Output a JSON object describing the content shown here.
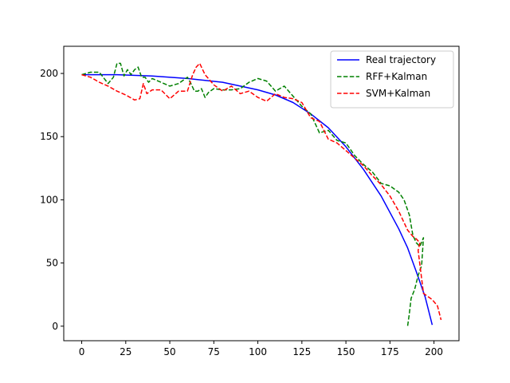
{
  "chart_data": {
    "type": "line",
    "title": "",
    "xlabel": "",
    "ylabel": "",
    "xlim": [
      -10.2,
      214.2
    ],
    "ylim": [
      -11.5,
      221.5
    ],
    "xticks": [
      0,
      25,
      50,
      75,
      100,
      125,
      150,
      175,
      200
    ],
    "yticks": [
      0,
      50,
      100,
      150,
      200
    ],
    "grid": false,
    "legend_position": "upper right",
    "series": [
      {
        "name": "Real trajectory",
        "color": "#0000ff",
        "style": "solid",
        "x": [
          0,
          20,
          40,
          60,
          80,
          100,
          110,
          120,
          130,
          140,
          150,
          160,
          170,
          180,
          185,
          190,
          195,
          199
        ],
        "y": [
          199,
          199,
          198,
          196,
          193,
          187,
          183,
          177,
          168,
          157,
          142,
          124,
          103,
          77,
          62,
          43,
          23,
          1
        ]
      },
      {
        "name": "RFF+Kalman",
        "color": "#008000",
        "style": "dashed",
        "x": [
          0,
          5,
          10,
          15,
          18,
          20,
          22,
          24,
          26,
          28,
          30,
          32,
          34,
          36,
          38,
          40,
          45,
          50,
          55,
          60,
          62,
          64,
          66,
          68,
          70,
          72,
          75,
          80,
          85,
          90,
          95,
          100,
          105,
          110,
          115,
          120,
          125,
          130,
          135,
          140,
          145,
          150,
          155,
          160,
          165,
          170,
          175,
          180,
          183,
          186,
          188,
          190,
          192,
          194,
          193,
          191,
          189,
          187,
          186,
          185
        ],
        "y": [
          199,
          201,
          201,
          192,
          197,
          208,
          208,
          198,
          203,
          199,
          203,
          205,
          197,
          197,
          193,
          196,
          193,
          190,
          192,
          197,
          192,
          186,
          186,
          188,
          181,
          185,
          188,
          187,
          187,
          188,
          193,
          196,
          194,
          186,
          190,
          182,
          174,
          168,
          153,
          155,
          147,
          145,
          135,
          128,
          122,
          113,
          111,
          106,
          100,
          88,
          72,
          66,
          63,
          70,
          48,
          40,
          29,
          22,
          10,
          0
        ]
      },
      {
        "name": "SVM+Kalman",
        "color": "#ff0000",
        "style": "dashed",
        "x": [
          0,
          5,
          10,
          15,
          20,
          25,
          30,
          33,
          35,
          37,
          40,
          45,
          50,
          55,
          60,
          63,
          65,
          67,
          70,
          75,
          80,
          85,
          90,
          95,
          100,
          105,
          110,
          115,
          120,
          125,
          130,
          135,
          140,
          145,
          150,
          155,
          160,
          165,
          170,
          175,
          180,
          185,
          188,
          190,
          192,
          191,
          194,
          196,
          199,
          202,
          204
        ],
        "y": [
          199,
          197,
          193,
          190,
          186,
          183,
          179,
          180,
          192,
          184,
          187,
          187,
          180,
          186,
          186,
          199,
          205,
          208,
          199,
          191,
          186,
          190,
          184,
          186,
          181,
          178,
          184,
          181,
          180,
          177,
          165,
          162,
          148,
          145,
          139,
          133,
          127,
          119,
          112,
          103,
          91,
          76,
          71,
          69,
          66,
          60,
          26,
          24,
          21,
          16,
          5
        ]
      }
    ]
  }
}
